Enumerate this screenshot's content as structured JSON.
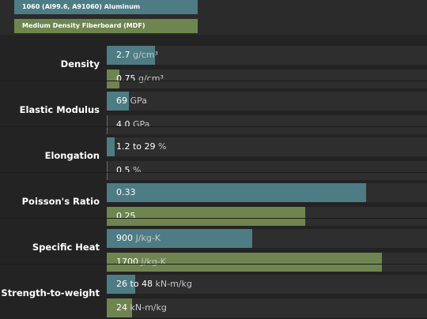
{
  "chart_data": {
    "type": "bar",
    "orientation": "horizontal",
    "series": [
      {
        "name": "1060 (Al99.6, A91060) Aluminum",
        "color": "#4e7c84"
      },
      {
        "name": "Medium Density Fiberboard (MDF)",
        "color": "#6f8550"
      }
    ],
    "properties": [
      {
        "label": "Density",
        "a": {
          "value": "2.7",
          "unit": "g/cm³",
          "fill": 0.15
        },
        "b": {
          "value": "0.75",
          "unit": "g/cm³",
          "fill": 0.04
        }
      },
      {
        "label": "Elastic Modulus",
        "a": {
          "value": "69",
          "unit": "GPa",
          "fill": 0.07
        },
        "b": {
          "value": "4.0",
          "unit": "GPa",
          "fill": 0.004
        }
      },
      {
        "label": "Elongation",
        "a": {
          "value": "1.2 to 29",
          "unit": "%",
          "fill": 0.025
        },
        "b": {
          "value": "0.5",
          "unit": "%",
          "fill": 0.003
        }
      },
      {
        "label": "Poisson's Ratio",
        "a": {
          "value": "0.33",
          "unit": "",
          "fill": 0.81
        },
        "b": {
          "value": "0.25",
          "unit": "",
          "fill": 0.62
        }
      },
      {
        "label": "Specific Heat",
        "a": {
          "value": "900",
          "unit": "J/kg-K",
          "fill": 0.455
        },
        "b": {
          "value": "1700",
          "unit": "J/kg-K",
          "fill": 0.86
        }
      },
      {
        "label": "Strength-to-weight",
        "a": {
          "value": "26 to 48",
          "unit": "kN-m/kg",
          "fill": 0.09
        },
        "b": {
          "value": "24",
          "unit": "kN-m/kg",
          "fill": 0.08
        }
      }
    ]
  }
}
